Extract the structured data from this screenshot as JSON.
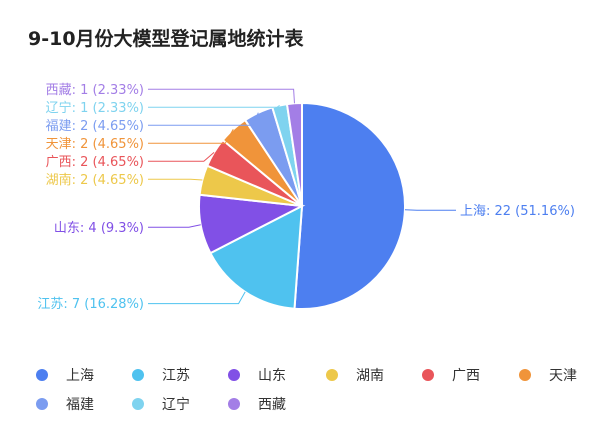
{
  "title": "9-10月份大模型登记属地统计表",
  "chart_data": {
    "type": "pie",
    "title": "9-10月份大模型登记属地统计表",
    "slices": [
      {
        "name": "上海",
        "value": 22,
        "percent": "51.16%",
        "label": "上海: 22 (51.16%)",
        "color": "#4d7ff0"
      },
      {
        "name": "江苏",
        "value": 7,
        "percent": "16.28%",
        "label": "江苏: 7 (16.28%)",
        "color": "#4fc2ef"
      },
      {
        "name": "山东",
        "value": 4,
        "percent": "9.3%",
        "label": "山东: 4 (9.3%)",
        "color": "#8150e6"
      },
      {
        "name": "湖南",
        "value": 2,
        "percent": "4.65%",
        "label": "湖南: 2 (4.65%)",
        "color": "#edc84a"
      },
      {
        "name": "广西",
        "value": 2,
        "percent": "4.65%",
        "label": "广西: 2 (4.65%)",
        "color": "#e9555a"
      },
      {
        "name": "天津",
        "value": 2,
        "percent": "4.65%",
        "label": "天津: 2 (4.65%)",
        "color": "#f0943a"
      },
      {
        "name": "福建",
        "value": 2,
        "percent": "4.65%",
        "label": "福建: 2 (4.65%)",
        "color": "#7b9cf0"
      },
      {
        "name": "辽宁",
        "value": 1,
        "percent": "2.33%",
        "label": "辽宁: 1 (2.33%)",
        "color": "#7fd3ef"
      },
      {
        "name": "西藏",
        "value": 1,
        "percent": "2.33%",
        "label": "西藏: 1 (2.33%)",
        "color": "#a37ee6"
      }
    ],
    "legend_position": "bottom"
  }
}
